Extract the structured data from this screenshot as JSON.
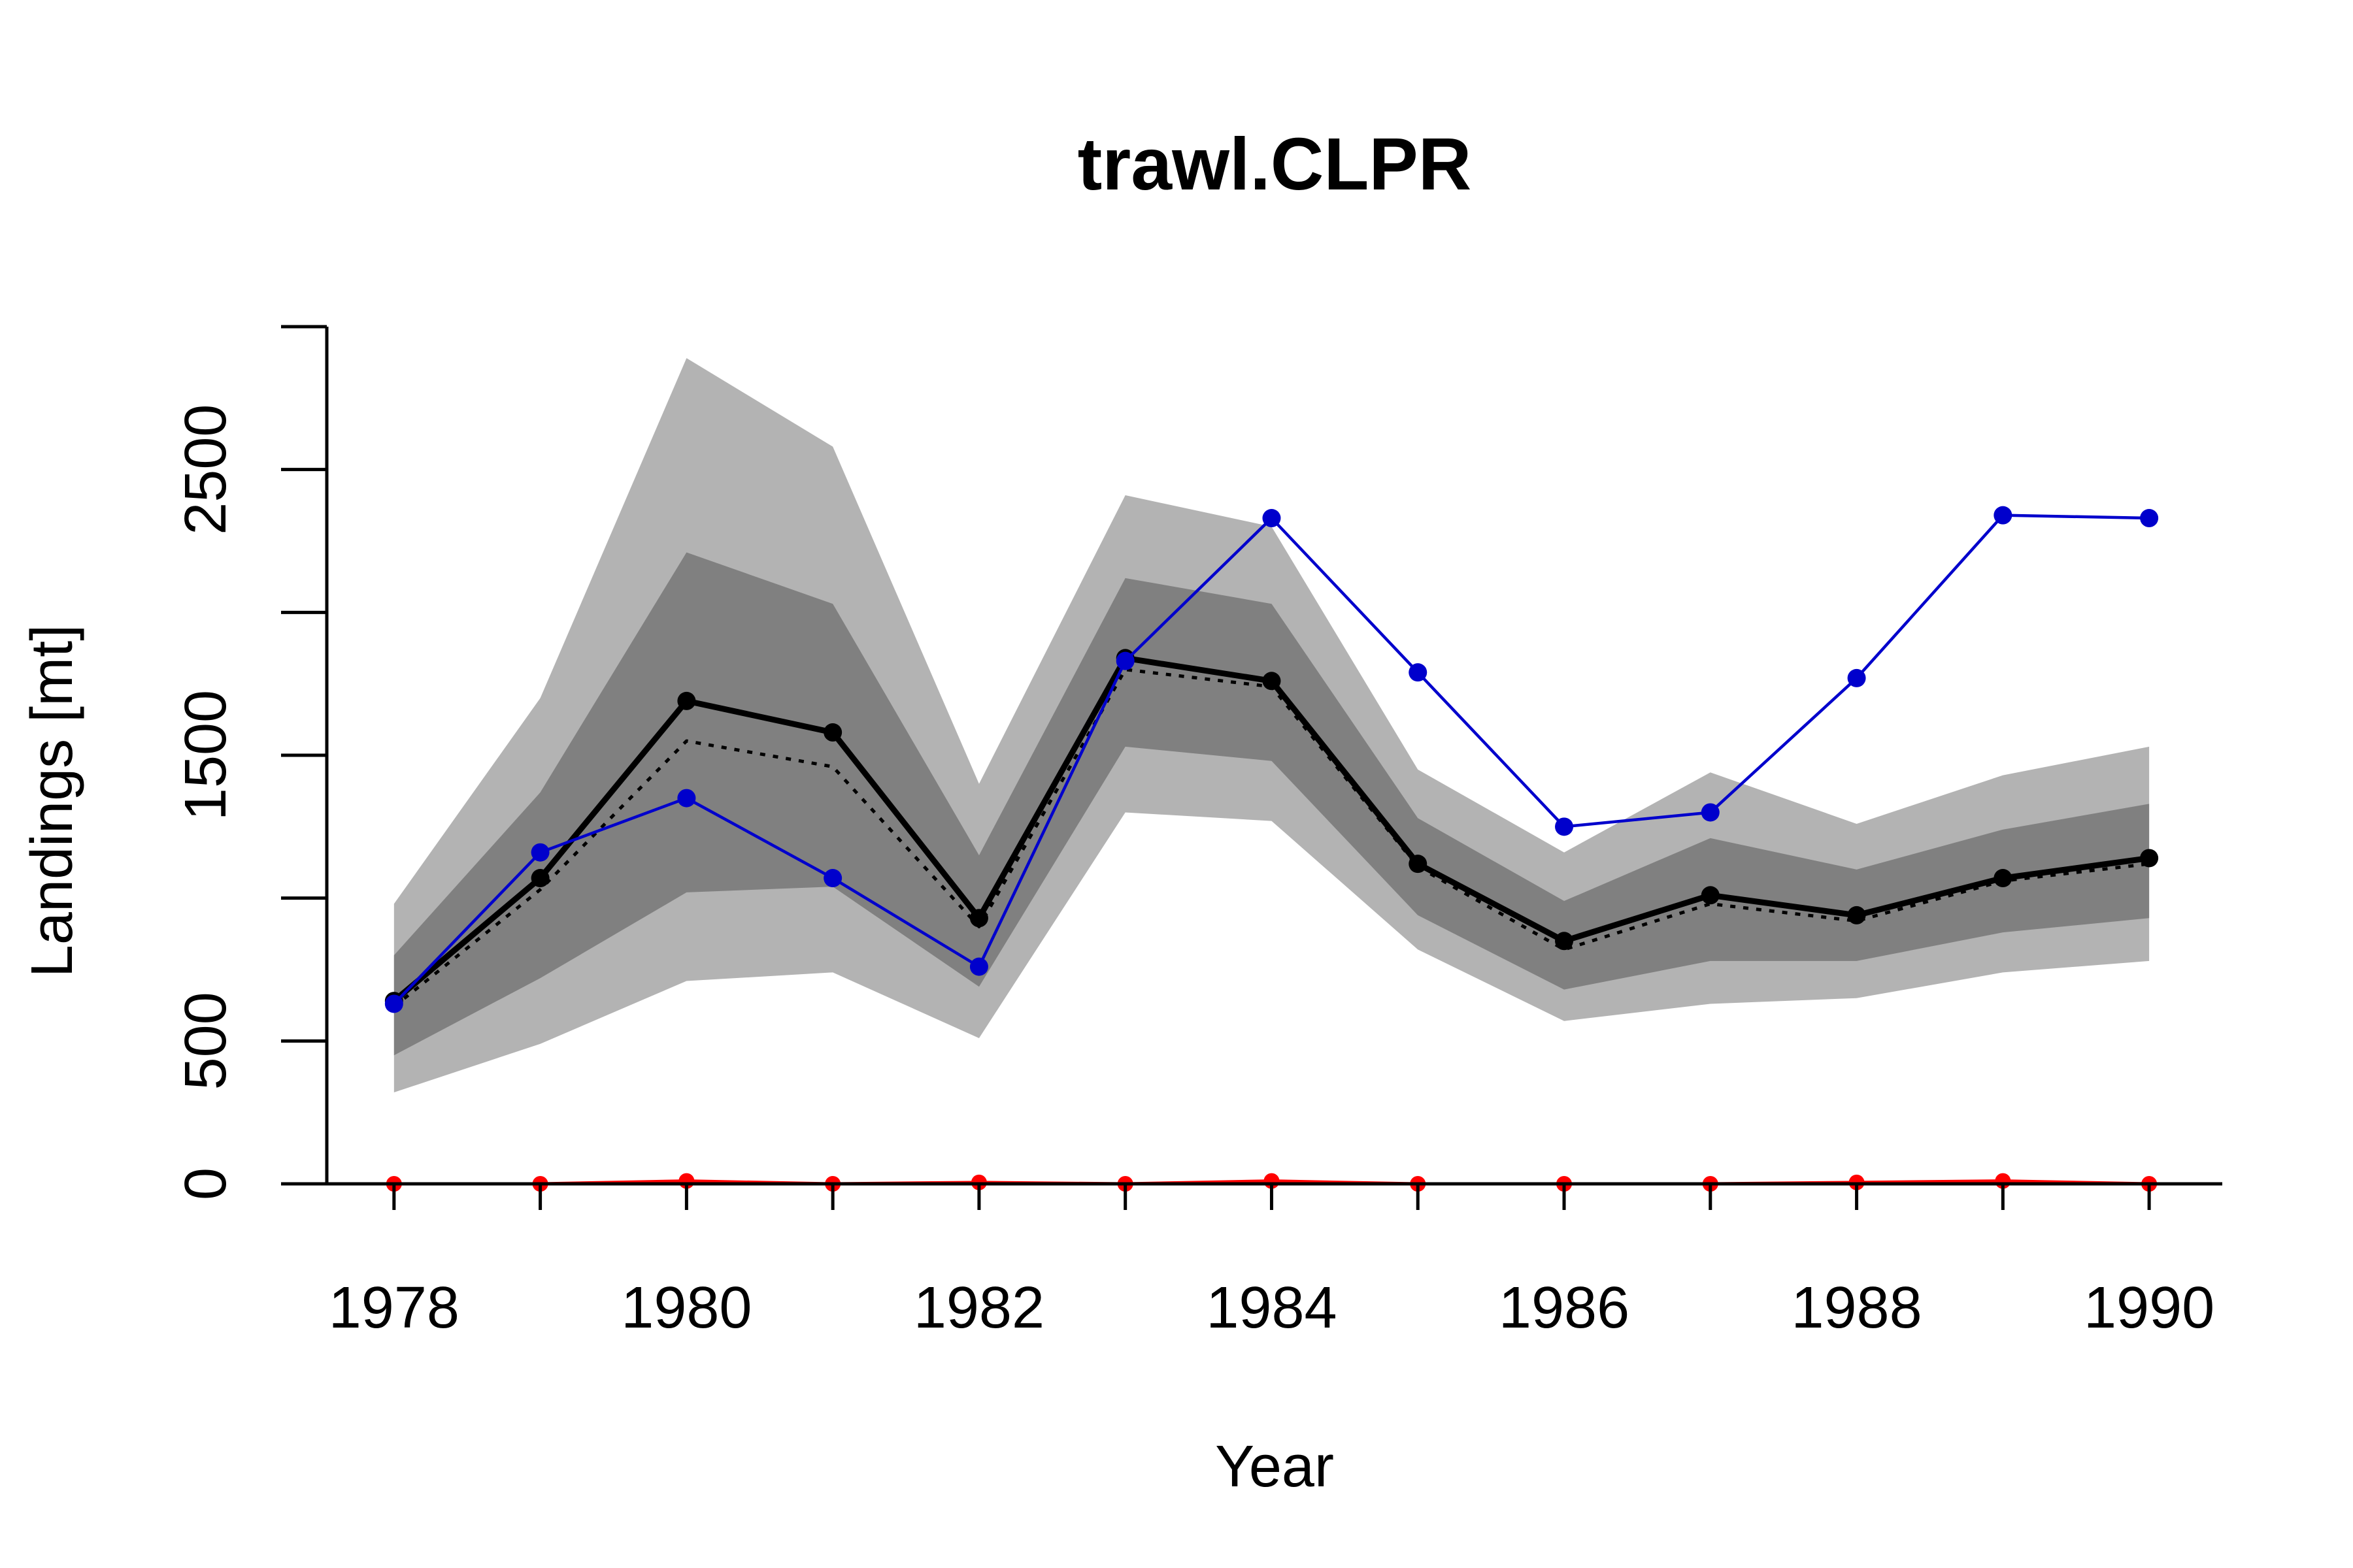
{
  "chart_data": {
    "type": "line",
    "title": "trawl.CLPR",
    "xlabel": "Year",
    "ylabel": "Landings [mt]",
    "x": [
      1978,
      1979,
      1980,
      1981,
      1982,
      1983,
      1984,
      1985,
      1986,
      1987,
      1988,
      1989,
      1990
    ],
    "xticks": [
      1978,
      1980,
      1982,
      1984,
      1986,
      1988,
      1990
    ],
    "yticks": [
      0,
      500,
      1000,
      1500,
      2000,
      2500,
      3000
    ],
    "ytick_labels_shown": [
      "0",
      "500",
      "1500",
      "2500"
    ],
    "xlim": [
      1977.25,
      1990.5
    ],
    "ylim": [
      0,
      3000
    ],
    "grid": false,
    "bands": [
      {
        "role": "outer",
        "color": "#b3b3b3",
        "lower": [
          320,
          490,
          710,
          740,
          510,
          1300,
          1270,
          820,
          570,
          630,
          650,
          740,
          780
        ],
        "upper": [
          980,
          1700,
          2890,
          2580,
          1400,
          2410,
          2300,
          1450,
          1160,
          1440,
          1260,
          1430,
          1530
        ]
      },
      {
        "role": "inner",
        "color": "#808080",
        "lower": [
          450,
          720,
          1020,
          1040,
          690,
          1530,
          1480,
          940,
          680,
          780,
          780,
          880,
          930
        ],
        "upper": [
          800,
          1370,
          2210,
          2030,
          1150,
          2120,
          2030,
          1280,
          990,
          1210,
          1100,
          1240,
          1330
        ]
      }
    ],
    "series": [
      {
        "role": "median",
        "color": "#000000",
        "style": "solid",
        "markers": true,
        "values": [
          640,
          1070,
          1690,
          1580,
          930,
          1840,
          1760,
          1120,
          850,
          1010,
          940,
          1070,
          1140
        ]
      },
      {
        "role": "mean",
        "color": "#000000",
        "style": "dotted",
        "markers": false,
        "values": [
          620,
          1030,
          1550,
          1460,
          900,
          1800,
          1740,
          1110,
          820,
          980,
          920,
          1060,
          1120
        ]
      },
      {
        "role": "observed",
        "color": "#0000cc",
        "style": "solid",
        "markers": true,
        "values": [
          630,
          1160,
          1350,
          1070,
          760,
          1830,
          2330,
          1790,
          1250,
          1300,
          1770,
          2340,
          2330
        ]
      },
      {
        "role": "low",
        "color": "#ff0000",
        "style": "solid",
        "markers": true,
        "values": [
          0,
          0,
          10,
          0,
          5,
          0,
          10,
          0,
          0,
          0,
          5,
          10,
          0
        ]
      }
    ]
  }
}
